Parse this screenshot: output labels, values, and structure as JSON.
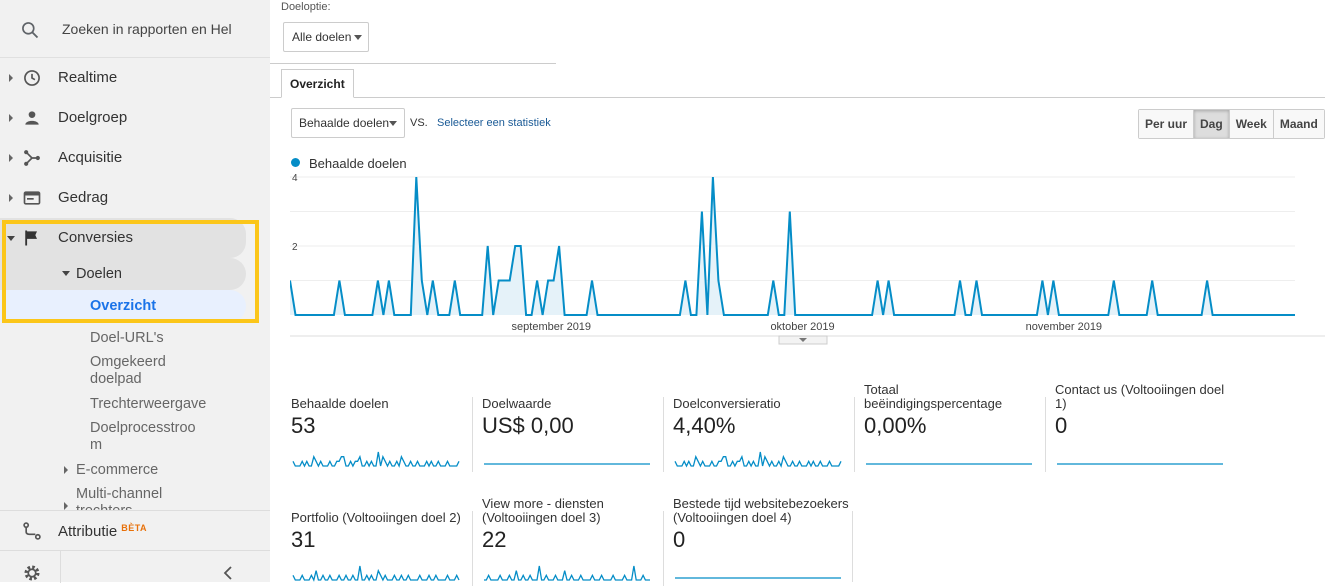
{
  "search": {
    "placeholder": "Zoeken in rapporten en Help",
    "icon": "search-icon"
  },
  "nav": [
    {
      "label": "Realtime",
      "icon": "clock-icon"
    },
    {
      "label": "Doelgroep",
      "icon": "person-icon"
    },
    {
      "label": "Acquisitie",
      "icon": "acquisition-icon"
    },
    {
      "label": "Gedrag",
      "icon": "behavior-icon"
    },
    {
      "label": "Conversies",
      "icon": "flag-icon"
    }
  ],
  "conversions": {
    "goals": "Doelen",
    "overview": "Overzicht",
    "goal_urls": "Doel-URL's",
    "reverse_path_1": "Omgekeerd",
    "reverse_path_2": "doelpad",
    "funnel": "Trechterweergave",
    "flow_1": "Doelprocesstroo",
    "flow_2": "m",
    "ecommerce": "E-commerce",
    "multichannel_1": "Multi-channel",
    "multichannel_2": "trechters"
  },
  "attribution": {
    "label": "Attributie",
    "badge": "BÈTA",
    "icon": "attribution-icon"
  },
  "footer": {
    "settings_icon": "gear-icon",
    "collapse_icon": "chevron-left-icon"
  },
  "goal_option": {
    "label": "Doeloptie:",
    "value": "Alle doelen"
  },
  "tab": "Overzicht",
  "metric_select": "Behaalde doelen",
  "vs": "VS.",
  "select_stat": "Selecteer een statistiek",
  "period_buttons": [
    "Per uur",
    "Dag",
    "Week",
    "Maand"
  ],
  "active_period": "Dag",
  "colors": {
    "accent": "#058dc7",
    "highlight": "#fbc61a",
    "fill": "#e5f2f9"
  },
  "chart_data": {
    "type": "area",
    "series": [
      {
        "name": "Behaalde doelen",
        "values": [
          1,
          0,
          0,
          0,
          0,
          0,
          0,
          0,
          0,
          1,
          0,
          0,
          0,
          0,
          0,
          0,
          1,
          0,
          1,
          0,
          0,
          0,
          0,
          4,
          1,
          0,
          1,
          0,
          0,
          0,
          1,
          0,
          0,
          0,
          0,
          0,
          2,
          0,
          1,
          1,
          1,
          2,
          2,
          0,
          0,
          1,
          0,
          1,
          1,
          2,
          0,
          0,
          0,
          0,
          0,
          1,
          0,
          0,
          0,
          0,
          0,
          0,
          0,
          0,
          0,
          0,
          0,
          0,
          0,
          0,
          0,
          0,
          1,
          0,
          0,
          3,
          0,
          4,
          1,
          0,
          0,
          0,
          0,
          0,
          0,
          0,
          0,
          0,
          1,
          0,
          0,
          3,
          0,
          0,
          0,
          0,
          0,
          0,
          0,
          0,
          0,
          0,
          0,
          0,
          0,
          0,
          0,
          1,
          0,
          1,
          0,
          0,
          0,
          0,
          0,
          0,
          0,
          0,
          0,
          0,
          0,
          0,
          1,
          0,
          0,
          1,
          0,
          0,
          0,
          0,
          0,
          0,
          0,
          0,
          0,
          0,
          0,
          1,
          0,
          1,
          0,
          0,
          0,
          0,
          0,
          0,
          0,
          0,
          0,
          0,
          1,
          0,
          0,
          0,
          0,
          0,
          0,
          1,
          0,
          0,
          0,
          0,
          0,
          0,
          0,
          0,
          0,
          1,
          0,
          0,
          0,
          0,
          0,
          0,
          0,
          0,
          0,
          0,
          0,
          0,
          0,
          0,
          0,
          0
        ]
      }
    ],
    "yticks": [
      "4",
      "2"
    ],
    "ylim": [
      0,
      4
    ],
    "x_labels": [
      "september 2019",
      "oktober 2019",
      "november 2019"
    ]
  },
  "tiles": [
    {
      "title": "Behaalde doelen",
      "value": "53",
      "spark": [
        1,
        0,
        0,
        0,
        1,
        0,
        1,
        0,
        0,
        2,
        1,
        0,
        1,
        0,
        0,
        0,
        1,
        0,
        0,
        1,
        1,
        2,
        2,
        0,
        0,
        1,
        0,
        1,
        1,
        2,
        0,
        0,
        1,
        0,
        1,
        0,
        0,
        3,
        0,
        2,
        1,
        0,
        1,
        0,
        0,
        1,
        0,
        2,
        1,
        0,
        0,
        1,
        0,
        0,
        1,
        0,
        0,
        0,
        1,
        0,
        1,
        0,
        0,
        1,
        0,
        0,
        0,
        1,
        0,
        0,
        0,
        0,
        1
      ]
    },
    {
      "title": "Doelwaarde",
      "value": "US$ 0,00",
      "spark": []
    },
    {
      "title": "Doelconversieratio",
      "value": "4,40%",
      "spark": [
        1,
        0,
        0,
        0,
        1,
        0,
        1,
        0,
        0,
        2,
        1,
        0,
        1,
        0,
        0,
        0,
        1,
        0,
        0,
        1,
        1,
        2,
        2,
        0,
        0,
        1,
        0,
        1,
        1,
        2,
        0,
        0,
        1,
        0,
        1,
        0,
        0,
        3,
        0,
        2,
        1,
        0,
        1,
        0,
        0,
        1,
        0,
        2,
        1,
        0,
        0,
        1,
        0,
        0,
        1,
        0,
        0,
        0,
        1,
        0,
        1,
        0,
        0,
        1,
        0,
        0,
        0,
        1,
        0,
        0,
        0,
        0,
        1
      ]
    },
    {
      "title": "Totaal beëindigingspercentage",
      "value": "0,00%",
      "spark": []
    },
    {
      "title": "Contact us (Voltooiingen doel 1)",
      "value": "0",
      "spark": []
    },
    {
      "title": "Portfolio (Voltooiingen doel 2)",
      "value": "31",
      "spark": [
        1,
        0,
        0,
        0,
        1,
        0,
        0,
        0,
        1,
        0,
        2,
        0,
        0,
        1,
        0,
        0,
        1,
        0,
        0,
        0,
        1,
        0,
        0,
        1,
        0,
        0,
        1,
        0,
        0,
        3,
        0,
        0,
        1,
        0,
        1,
        0,
        0,
        2,
        1,
        0,
        1,
        0,
        0,
        0,
        1,
        0,
        0,
        1,
        0,
        0,
        1,
        0,
        0,
        0,
        0,
        1,
        0,
        0,
        0,
        1,
        0,
        0,
        1,
        0,
        0,
        0,
        0,
        1,
        0,
        0,
        0,
        1,
        0
      ]
    },
    {
      "title": "View more - diensten (Voltooiingen doel 3)",
      "value": "22",
      "spark": [
        0,
        0,
        1,
        0,
        0,
        0,
        0,
        1,
        0,
        0,
        0,
        1,
        0,
        0,
        2,
        0,
        0,
        1,
        0,
        0,
        1,
        0,
        0,
        0,
        3,
        0,
        0,
        1,
        0,
        0,
        0,
        1,
        0,
        0,
        0,
        2,
        0,
        0,
        1,
        0,
        0,
        0,
        1,
        0,
        0,
        0,
        0,
        1,
        0,
        0,
        0,
        1,
        0,
        0,
        0,
        0,
        1,
        0,
        0,
        0,
        0,
        1,
        0,
        0,
        0,
        3,
        0,
        0,
        0,
        1,
        0,
        0,
        0
      ]
    },
    {
      "title": "Bestede tijd websitebezoekers (Voltooiingen doel 4)",
      "value": "0",
      "spark": []
    }
  ]
}
